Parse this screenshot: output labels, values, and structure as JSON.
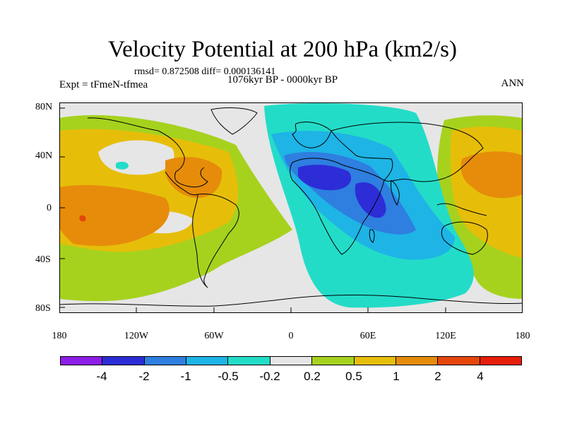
{
  "title": "Velocity Potential at 200 hPa (km2/s)",
  "stats_line": "rmsd= 0.872508 diff= 0.000136141",
  "period_line": "1076kyr BP - 0000kyr BP",
  "experiment_label": "Expt = tFmeN-tfmea",
  "season_label": "ANN",
  "lat_labels": [
    "80N",
    "40N",
    "0",
    "40S",
    "80S"
  ],
  "lon_labels": [
    "180",
    "120W",
    "60W",
    "0",
    "60E",
    "120E",
    "180"
  ],
  "legend": {
    "colors": [
      "#8c1ee6",
      "#2d2dd7",
      "#2e7fe0",
      "#1eb4e6",
      "#23dcc8",
      "#e6e6e6",
      "#a6d21e",
      "#e6be0a",
      "#e68c0a",
      "#e6460a",
      "#e61e0a"
    ],
    "labels": [
      "-4",
      "-2",
      "-1",
      "-0.5",
      "-0.2",
      "0.2",
      "0.5",
      "1",
      "2",
      "4"
    ]
  },
  "colors": {
    "no_change": "#e6e6e6",
    "pos_weak": "#a6d21e",
    "pos_mid": "#e6be0a",
    "pos_strong": "#e68c0a",
    "pos_max": "#e6460a",
    "neg_weak": "#23dcc8",
    "neg_mid": "#1eb4e6",
    "neg_strong": "#2e7fe0",
    "neg_max": "#2d2dd7"
  }
}
